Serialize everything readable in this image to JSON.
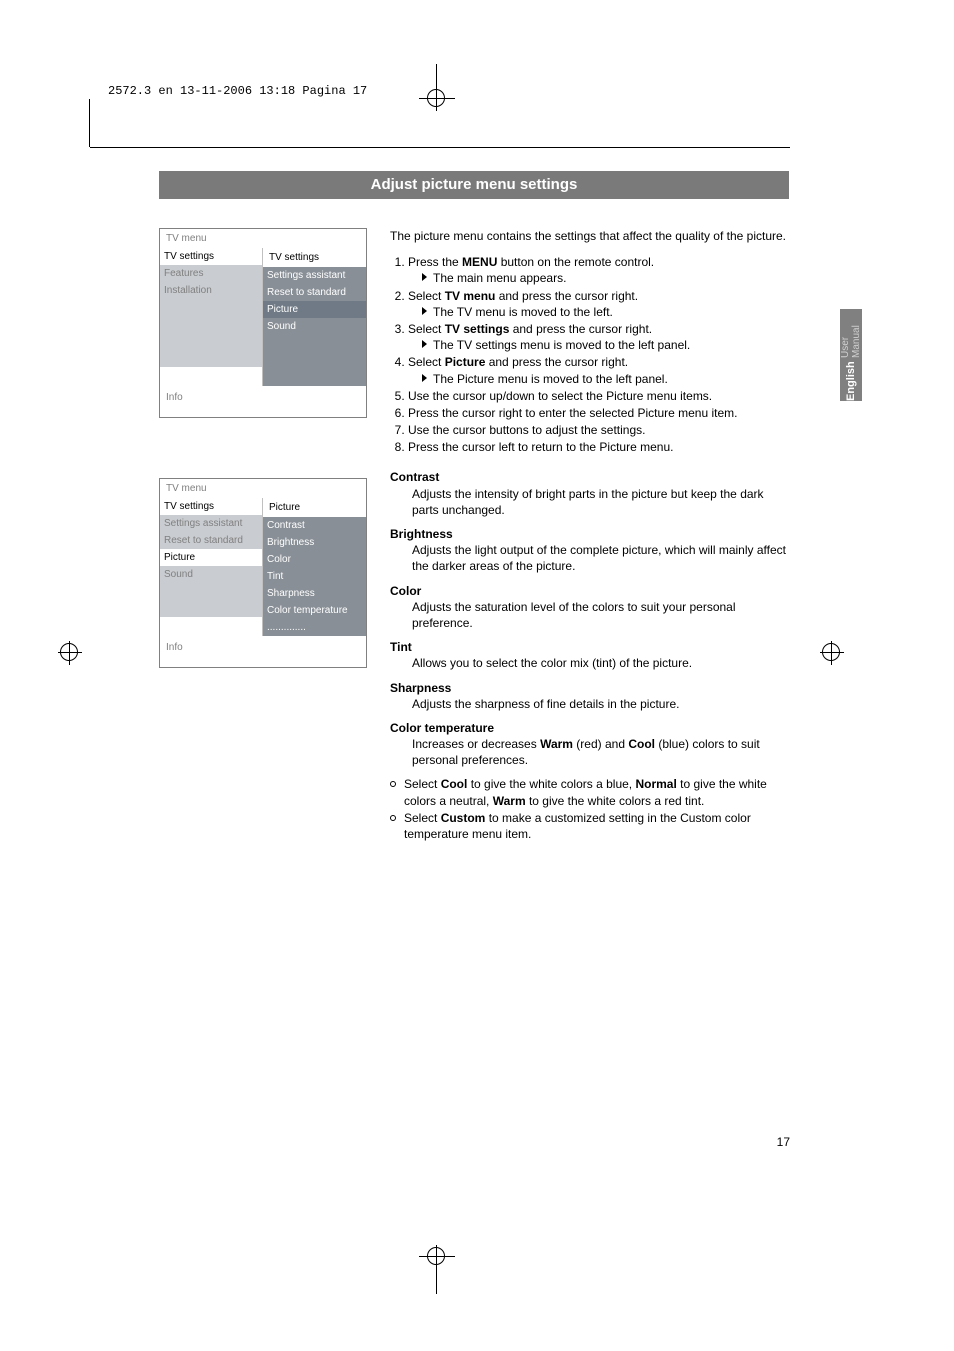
{
  "meta_header": "2572.3 en  13-11-2006  13:18  Pagina 17",
  "title_bar": "Adjust picture menu settings",
  "side_tab": {
    "bold": "English",
    "light": "User Manual"
  },
  "page_number": "17",
  "menu1": {
    "header": "TV menu",
    "right_header": "TV settings",
    "left": [
      "TV settings",
      "Features",
      "Installation",
      "",
      "",
      "",
      ""
    ],
    "left_styles": [
      "white",
      "grey-light",
      "grey-light",
      "grey-light",
      "grey-light",
      "grey-light",
      "grey-light"
    ],
    "right": [
      "Settings assistant",
      "Reset to standard",
      "Picture",
      "Sound",
      "",
      "",
      ""
    ],
    "right_styles": [
      "grey-mid",
      "grey-mid",
      "grey-mid-hl",
      "grey-mid",
      "grey-mid",
      "grey-mid",
      "grey-mid"
    ],
    "info": "Info"
  },
  "menu2": {
    "header": "TV menu",
    "right_header": "Picture",
    "left": [
      "TV settings",
      "Settings assistant",
      "Reset to standard",
      "Picture",
      "Sound",
      "",
      ""
    ],
    "left_styles": [
      "white",
      "grey-light",
      "grey-light",
      "white",
      "grey-light",
      "grey-light",
      "grey-light"
    ],
    "right": [
      "Contrast",
      "Brightness",
      "Color",
      "Tint",
      "Sharpness",
      "Color temperature",
      ".............."
    ],
    "right_styles": [
      "grey-mid",
      "grey-mid",
      "grey-mid",
      "grey-mid",
      "grey-mid",
      "grey-mid",
      "grey-mid"
    ],
    "info": "Info"
  },
  "body": {
    "intro": "The picture menu contains the settings that affect the quality of the picture.",
    "steps": [
      {
        "t": "Press the ",
        "b": "MENU",
        "t2": " button on the remote control.",
        "sub": "The main menu appears."
      },
      {
        "t": "Select ",
        "b": "TV menu",
        "t2": " and press the cursor right.",
        "sub": "The TV menu is moved to the left."
      },
      {
        "t": "Select ",
        "b": "TV settings",
        "t2": " and press the cursor right.",
        "sub": "The TV settings menu is moved to the left panel."
      },
      {
        "t": "Select ",
        "b": "Picture",
        "t2": " and press the cursor right.",
        "sub": "The Picture menu is moved to the left panel."
      },
      {
        "t": "Use the cursor up/down to select the Picture menu items."
      },
      {
        "t": "Press the cursor right to enter the selected Picture menu item."
      },
      {
        "t": "Use the cursor buttons to adjust the settings."
      },
      {
        "t": "Press the cursor left to return to the Picture menu."
      }
    ],
    "sections": [
      {
        "h": "Contrast",
        "p": "Adjusts the intensity of bright parts in the picture but keep the dark parts unchanged."
      },
      {
        "h": "Brightness",
        "p": "Adjusts the light output of the complete picture, which will mainly affect the darker areas of the picture."
      },
      {
        "h": "Color",
        "p": "Adjusts the saturation level of the colors to suit your personal preference."
      },
      {
        "h": "Tint",
        "p": "Allows you to select the color mix (tint) of the picture."
      },
      {
        "h": "Sharpness",
        "p": "Adjusts the sharpness of fine details in the picture."
      }
    ],
    "colortemp": {
      "h": "Color temperature",
      "p1a": "Increases or decreases ",
      "p1b": "Warm",
      "p1c": " (red) and ",
      "p1d": "Cool",
      "p1e": " (blue) colors to suit personal preferences.",
      "b1a": "Select ",
      "b1b": "Cool",
      "b1c": " to give the white colors a blue, ",
      "b1d": "Normal",
      "b1e": " to give the white colors a neutral, ",
      "b1f": "Warm",
      "b1g": " to give the white colors a red tint.",
      "b2a": "Select ",
      "b2b": "Custom",
      "b2c": " to make a customized setting in the Custom color temperature menu item."
    }
  }
}
